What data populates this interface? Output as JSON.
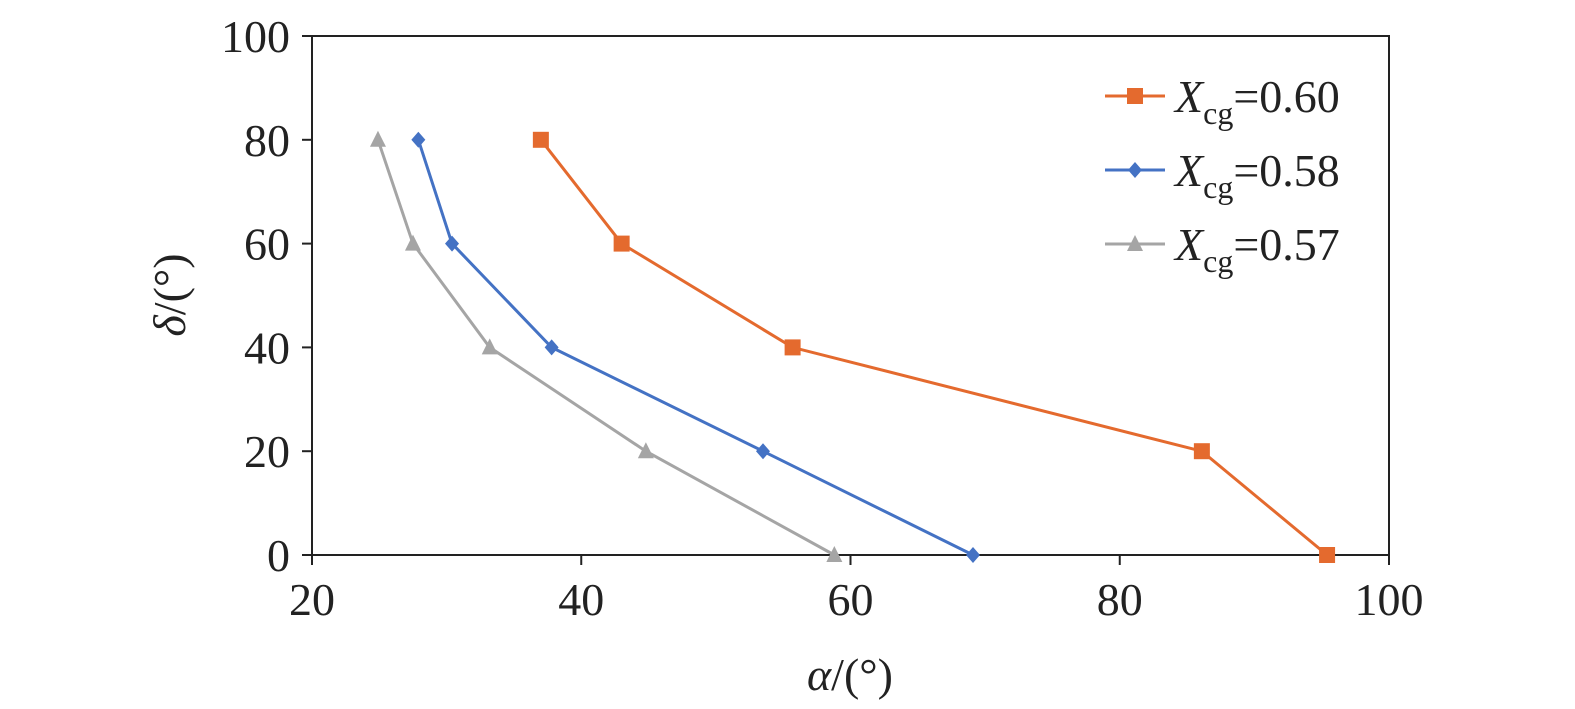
{
  "chart_data": {
    "type": "line",
    "xlabel": {
      "symbol": "α",
      "unit": "/(°)"
    },
    "ylabel": {
      "symbol": "δ",
      "unit": "/(°)"
    },
    "xlim": [
      20,
      100
    ],
    "ylim": [
      0,
      100
    ],
    "xticks": [
      "20",
      "40",
      "60",
      "80",
      "100"
    ],
    "yticks": [
      "0",
      "20",
      "40",
      "60",
      "80",
      "100"
    ],
    "grid": false,
    "legend_position": "top-right",
    "series": [
      {
        "name_var": "X",
        "name_sub": "cg",
        "name_value": "=0.60",
        "color": "#E46A2E",
        "marker": "square",
        "points": [
          [
            37.0,
            80
          ],
          [
            43.0,
            60
          ],
          [
            55.7,
            40
          ],
          [
            86.1,
            20
          ],
          [
            95.4,
            0
          ]
        ]
      },
      {
        "name_var": "X",
        "name_sub": "cg",
        "name_value": "=0.58",
        "color": "#4472C4",
        "marker": "diamond",
        "points": [
          [
            27.9,
            80
          ],
          [
            30.4,
            60
          ],
          [
            37.8,
            40
          ],
          [
            53.5,
            20
          ],
          [
            69.1,
            0
          ]
        ]
      },
      {
        "name_var": "X",
        "name_sub": "cg",
        "name_value": "=0.57",
        "color": "#A5A5A5",
        "marker": "triangle",
        "points": [
          [
            24.9,
            80
          ],
          [
            27.5,
            60
          ],
          [
            33.2,
            40
          ],
          [
            44.8,
            20
          ],
          [
            58.8,
            0
          ]
        ]
      }
    ]
  }
}
